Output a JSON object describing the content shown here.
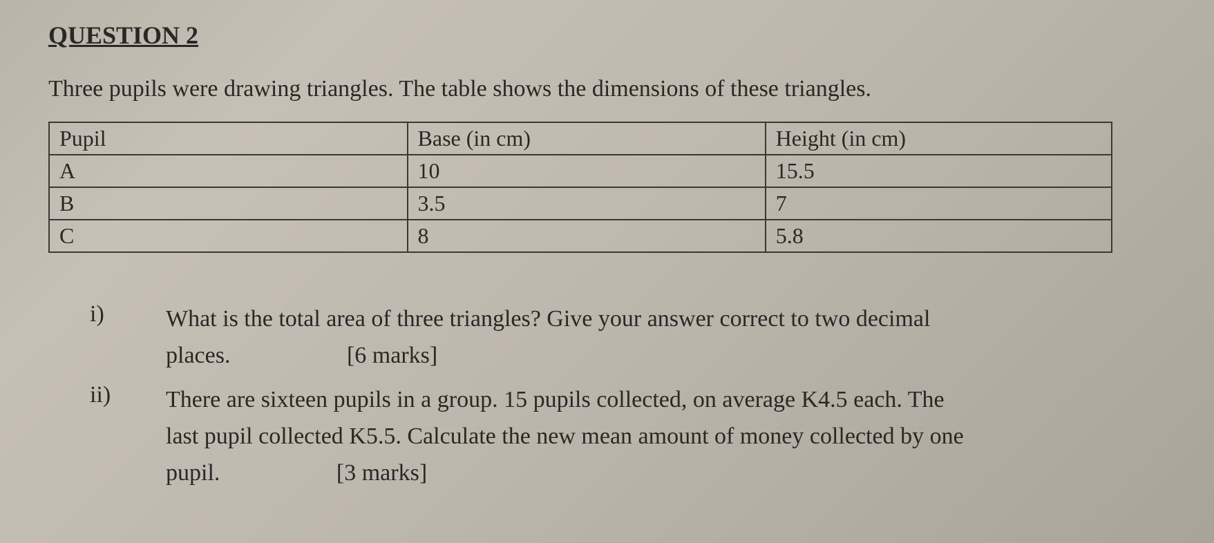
{
  "heading": "QUESTION 2",
  "prompt": "Three pupils were drawing triangles. The table shows the dimensions of these triangles.",
  "table": {
    "columns": [
      "Pupil",
      "Base (in cm)",
      "Height (in cm)"
    ],
    "rows": [
      [
        "A",
        "10",
        "15.5"
      ],
      [
        "B",
        "3.5",
        "7"
      ],
      [
        "C",
        "8",
        "5.8"
      ]
    ],
    "border_color": "#3a3832",
    "font_size_pt": 24
  },
  "subparts": [
    {
      "label": "i)",
      "text_line1": "What is the total area of three triangles? Give your answer correct to two decimal",
      "text_line2_prefix": "places.",
      "marks": "[6 marks]"
    },
    {
      "label": "ii)",
      "text_line1": "There are sixteen pupils in a group. 15 pupils collected, on average K4.5 each. The",
      "text_line2": "last pupil collected K5.5. Calculate the new mean amount of money collected by one",
      "text_line3_prefix": "pupil.",
      "marks": "[3 marks]"
    }
  ],
  "colors": {
    "background_top": "#c5c0b6",
    "background_bottom": "#a8a49a",
    "text": "#2a2824"
  }
}
